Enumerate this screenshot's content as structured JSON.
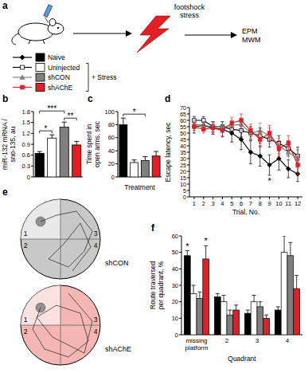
{
  "figure": {
    "panel_labels": [
      "a",
      "b",
      "c",
      "d",
      "e",
      "f"
    ],
    "schematic": {
      "stimulus": "footshock stress",
      "tests": [
        "EPM",
        "MWM"
      ]
    },
    "legend": {
      "entries": [
        {
          "name": "Naive",
          "color": "#000000",
          "marker": "diamond"
        },
        {
          "name": "Uninjected",
          "color": "#ffffff",
          "marker": "square"
        },
        {
          "name": "shCON",
          "color": "#808080",
          "marker": "triangle"
        },
        {
          "name": "shAChE",
          "color": "#e31e24",
          "marker": "square"
        }
      ],
      "group_label": "+ Stress"
    }
  },
  "maze": {
    "quadrants": [
      "1",
      "2",
      "3",
      "4"
    ],
    "maps": [
      {
        "label": "shCON",
        "color": "#c8c8c8"
      },
      {
        "label": "shAChE",
        "color": "#f4b6b3"
      }
    ]
  },
  "chart_data": [
    {
      "type": "bar",
      "ylabel": "miR-132 mRNA / sno-135, au",
      "categories": [
        null,
        null,
        null,
        null
      ],
      "values": [
        0.65,
        1.07,
        1.37,
        0.88
      ],
      "errors": [
        0.05,
        0.09,
        0.14,
        0.1
      ],
      "colors": [
        "#000000",
        "#ffffff",
        "#808080",
        "#e31e24"
      ],
      "ylim": [
        0,
        1.8
      ],
      "yticks": [
        0,
        0.3,
        0.6,
        0.9,
        1.2,
        1.5,
        1.8
      ],
      "tick_labels": "y",
      "annotations": [
        {
          "text": "*",
          "from": 0,
          "to": 1
        },
        {
          "text": "***",
          "from": 0,
          "to": 2
        },
        {
          "text": "**",
          "from": 2,
          "to": 3
        }
      ]
    },
    {
      "type": "bar",
      "ylabel": "Time spent in open arms, sec",
      "xlabel": "Treatment",
      "categories": [
        null,
        null,
        null,
        null
      ],
      "values": [
        80,
        22,
        25,
        32
      ],
      "errors": [
        10,
        4,
        6,
        7
      ],
      "colors": [
        "#000000",
        "#ffffff",
        "#808080",
        "#e31e24"
      ],
      "ylim": [
        0,
        100
      ],
      "yticks": [
        0,
        20,
        40,
        60,
        80,
        100
      ],
      "tick_labels": "y",
      "annotations": [
        {
          "text": "*",
          "from": 0,
          "to": 2
        }
      ]
    },
    {
      "type": "line",
      "ylabel": "Escape latency, sec",
      "xlabel": "Trial, No.",
      "x": [
        1,
        2,
        3,
        4,
        5,
        6,
        7,
        8,
        9,
        10,
        11,
        12
      ],
      "xlim": [
        0.5,
        12.5
      ],
      "xticks": [
        1,
        2,
        3,
        4,
        5,
        6,
        7,
        8,
        9,
        10,
        11,
        12
      ],
      "ylim": [
        0,
        70
      ],
      "yticks": [
        0,
        5,
        10,
        15,
        20,
        25,
        30,
        35,
        40,
        45,
        50,
        55,
        60,
        65,
        70
      ],
      "series": [
        {
          "name": "Naive",
          "color": "#000000",
          "marker": "diamond",
          "line_style": "solid",
          "values": [
            55,
            56,
            54,
            53,
            50,
            45,
            35,
            32,
            25,
            30,
            22,
            18
          ],
          "errors": [
            5,
            4,
            5,
            6,
            7,
            8,
            9,
            8,
            8,
            9,
            7,
            6
          ]
        },
        {
          "name": "Uninjected",
          "color": "#ffffff",
          "marker": "square",
          "line_style": "solid",
          "values": [
            60,
            60,
            55,
            55,
            53,
            52,
            50,
            48,
            45,
            42,
            38,
            32
          ],
          "errors": [
            3,
            3,
            4,
            4,
            4,
            5,
            5,
            6,
            6,
            6,
            6,
            7
          ]
        },
        {
          "name": "shCON",
          "color": "#808080",
          "marker": "triangle",
          "line_style": "solid",
          "values": [
            57,
            56,
            55,
            55,
            56,
            57,
            50,
            52,
            48,
            40,
            35,
            30
          ],
          "errors": [
            3,
            3,
            4,
            4,
            4,
            5,
            5,
            6,
            6,
            6,
            6,
            7
          ]
        },
        {
          "name": "shAChE",
          "color": "#e31e24",
          "marker": "square",
          "line_style": "solid",
          "values": [
            55,
            53,
            54,
            52,
            58,
            60,
            52,
            45,
            50,
            38,
            42,
            25
          ],
          "errors": [
            3,
            3,
            4,
            4,
            4,
            5,
            5,
            6,
            6,
            6,
            6,
            7
          ]
        }
      ],
      "annotations": [
        {
          "text": "*",
          "x": 9
        }
      ]
    },
    {
      "type": "bar",
      "ylabel": "Route traversed per quadrant, %",
      "xlabel": "Quadrant",
      "categories": [
        "missing platform",
        "2",
        "3",
        "4"
      ],
      "ylim": [
        0,
        60
      ],
      "yticks": [
        0,
        10,
        20,
        30,
        40,
        50,
        60
      ],
      "series": [
        {
          "name": "Naive",
          "color": "#000000",
          "values": [
            48,
            23,
            13,
            15
          ],
          "errors": [
            3,
            2,
            2,
            2
          ]
        },
        {
          "name": "Uninjected",
          "color": "#ffffff",
          "values": [
            25,
            20,
            20,
            50
          ],
          "errors": [
            5,
            4,
            4,
            10
          ]
        },
        {
          "name": "shCON",
          "color": "#808080",
          "values": [
            22,
            12,
            17,
            48
          ],
          "errors": [
            4,
            3,
            3,
            8
          ]
        },
        {
          "name": "shAChE",
          "color": "#e31e24",
          "values": [
            46,
            15,
            10,
            28
          ],
          "errors": [
            8,
            3,
            2,
            8
          ]
        }
      ],
      "annotations": [
        {
          "text": "*",
          "category": 0,
          "series": 0
        },
        {
          "text": "*",
          "category": 0,
          "series": 3
        }
      ]
    }
  ]
}
